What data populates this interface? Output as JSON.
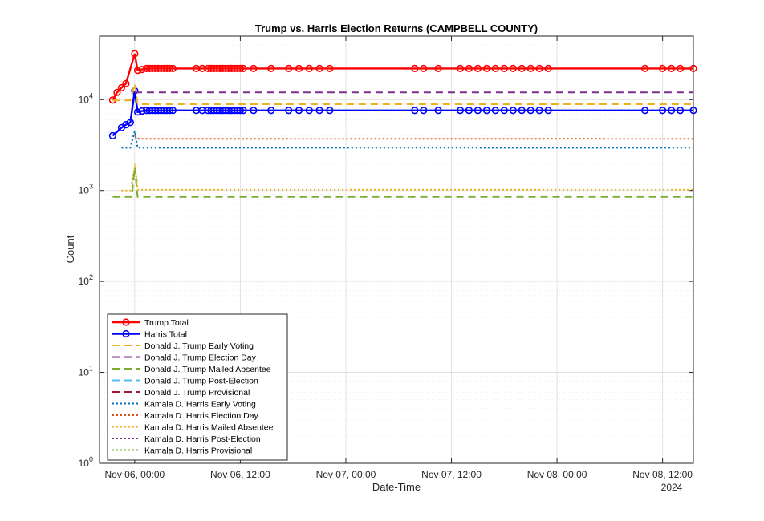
{
  "chart_data": {
    "type": "line",
    "title": "Trump vs. Harris Election Returns (CAMPBELL COUNTY)",
    "xlabel": "Date-Time",
    "ylabel": "Count",
    "y_scale": "log",
    "ylim": [
      1,
      50000
    ],
    "xlim": [
      "2024-11-05 20:00",
      "2024-11-08 15:30"
    ],
    "x_year_label": "2024",
    "grid": true,
    "legend_position": "bottom-left",
    "x_ticks": [
      {
        "x": "2024-11-06 00:00",
        "label": "Nov 06, 00:00"
      },
      {
        "x": "2024-11-06 12:00",
        "label": "Nov 06, 12:00"
      },
      {
        "x": "2024-11-07 00:00",
        "label": "Nov 07, 00:00"
      },
      {
        "x": "2024-11-07 12:00",
        "label": "Nov 07, 12:00"
      },
      {
        "x": "2024-11-08 00:00",
        "label": "Nov 08, 00:00"
      },
      {
        "x": "2024-11-08 12:00",
        "label": "Nov 08, 12:00"
      }
    ],
    "y_ticks": [
      {
        "value": 1,
        "base": "10",
        "exp": "0"
      },
      {
        "value": 10,
        "base": "10",
        "exp": "1"
      },
      {
        "value": 100,
        "base": "10",
        "exp": "2"
      },
      {
        "value": 1000,
        "base": "10",
        "exp": "3"
      },
      {
        "value": 10000,
        "base": "10",
        "exp": "4"
      }
    ],
    "series": [
      {
        "name": "Trump Total",
        "color": "#ff0000",
        "style": "solid",
        "marker": "circle",
        "points": [
          [
            "2024-11-05 21:30",
            9900
          ],
          [
            "2024-11-05 22:00",
            12000
          ],
          [
            "2024-11-05 22:30",
            13500
          ],
          [
            "2024-11-05 23:00",
            15000
          ],
          [
            "2024-11-06 00:00",
            32000
          ],
          [
            "2024-11-06 00:20",
            21000
          ],
          [
            "2024-11-06 00:50",
            21500
          ],
          [
            "2024-11-06 01:20",
            22000
          ],
          [
            "2024-11-06 01:40",
            22000
          ],
          [
            "2024-11-06 02:00",
            22000
          ],
          [
            "2024-11-06 02:20",
            22000
          ],
          [
            "2024-11-06 02:40",
            22000
          ],
          [
            "2024-11-06 03:00",
            22000
          ],
          [
            "2024-11-06 03:20",
            22000
          ],
          [
            "2024-11-06 03:40",
            22000
          ],
          [
            "2024-11-06 04:00",
            22000
          ],
          [
            "2024-11-06 04:20",
            22000
          ],
          [
            "2024-11-06 07:00",
            22000
          ],
          [
            "2024-11-06 07:40",
            22000
          ],
          [
            "2024-11-06 08:20",
            22000
          ],
          [
            "2024-11-06 08:40",
            22000
          ],
          [
            "2024-11-06 09:00",
            22000
          ],
          [
            "2024-11-06 09:20",
            22000
          ],
          [
            "2024-11-06 09:40",
            22000
          ],
          [
            "2024-11-06 10:00",
            22000
          ],
          [
            "2024-11-06 10:20",
            22000
          ],
          [
            "2024-11-06 10:40",
            22000
          ],
          [
            "2024-11-06 11:00",
            22000
          ],
          [
            "2024-11-06 11:20",
            22000
          ],
          [
            "2024-11-06 11:40",
            22000
          ],
          [
            "2024-11-06 12:00",
            22000
          ],
          [
            "2024-11-06 12:20",
            22000
          ],
          [
            "2024-11-06 13:30",
            22000
          ],
          [
            "2024-11-06 15:30",
            22000
          ],
          [
            "2024-11-06 17:30",
            22000
          ],
          [
            "2024-11-06 18:40",
            22000
          ],
          [
            "2024-11-06 19:50",
            22000
          ],
          [
            "2024-11-06 21:00",
            22000
          ],
          [
            "2024-11-06 22:10",
            22000
          ],
          [
            "2024-11-07 07:50",
            22000
          ],
          [
            "2024-11-07 08:50",
            22000
          ],
          [
            "2024-11-07 10:30",
            22000
          ],
          [
            "2024-11-07 13:00",
            22000
          ],
          [
            "2024-11-07 14:00",
            22000
          ],
          [
            "2024-11-07 15:00",
            22000
          ],
          [
            "2024-11-07 16:00",
            22000
          ],
          [
            "2024-11-07 17:00",
            22000
          ],
          [
            "2024-11-07 18:00",
            22000
          ],
          [
            "2024-11-07 19:00",
            22000
          ],
          [
            "2024-11-07 20:00",
            22000
          ],
          [
            "2024-11-07 21:00",
            22000
          ],
          [
            "2024-11-07 22:00",
            22000
          ],
          [
            "2024-11-07 23:00",
            22000
          ],
          [
            "2024-11-08 10:00",
            22000
          ],
          [
            "2024-11-08 12:00",
            22000
          ],
          [
            "2024-11-08 13:00",
            22000
          ],
          [
            "2024-11-08 14:00",
            22000
          ],
          [
            "2024-11-08 15:30",
            22000
          ]
        ]
      },
      {
        "name": "Harris Total",
        "color": "#0000ff",
        "style": "solid",
        "marker": "circle",
        "points": [
          [
            "2024-11-05 21:30",
            4000
          ],
          [
            "2024-11-05 22:30",
            4900
          ],
          [
            "2024-11-05 23:00",
            5300
          ],
          [
            "2024-11-05 23:30",
            5600
          ],
          [
            "2024-11-06 00:00",
            12500
          ],
          [
            "2024-11-06 00:20",
            7300
          ],
          [
            "2024-11-06 00:50",
            7500
          ],
          [
            "2024-11-06 01:20",
            7600
          ],
          [
            "2024-11-06 01:40",
            7600
          ],
          [
            "2024-11-06 02:00",
            7600
          ],
          [
            "2024-11-06 02:20",
            7600
          ],
          [
            "2024-11-06 02:40",
            7600
          ],
          [
            "2024-11-06 03:00",
            7600
          ],
          [
            "2024-11-06 03:20",
            7600
          ],
          [
            "2024-11-06 03:40",
            7600
          ],
          [
            "2024-11-06 04:00",
            7600
          ],
          [
            "2024-11-06 04:20",
            7600
          ],
          [
            "2024-11-06 07:00",
            7600
          ],
          [
            "2024-11-06 07:40",
            7600
          ],
          [
            "2024-11-06 08:20",
            7600
          ],
          [
            "2024-11-06 08:40",
            7600
          ],
          [
            "2024-11-06 09:00",
            7600
          ],
          [
            "2024-11-06 09:20",
            7600
          ],
          [
            "2024-11-06 09:40",
            7600
          ],
          [
            "2024-11-06 10:00",
            7600
          ],
          [
            "2024-11-06 10:20",
            7600
          ],
          [
            "2024-11-06 10:40",
            7600
          ],
          [
            "2024-11-06 11:00",
            7600
          ],
          [
            "2024-11-06 11:20",
            7600
          ],
          [
            "2024-11-06 11:40",
            7600
          ],
          [
            "2024-11-06 12:00",
            7600
          ],
          [
            "2024-11-06 12:20",
            7600
          ],
          [
            "2024-11-06 13:30",
            7600
          ],
          [
            "2024-11-06 15:30",
            7600
          ],
          [
            "2024-11-06 17:30",
            7600
          ],
          [
            "2024-11-06 18:40",
            7600
          ],
          [
            "2024-11-06 19:50",
            7600
          ],
          [
            "2024-11-06 21:00",
            7600
          ],
          [
            "2024-11-06 22:10",
            7600
          ],
          [
            "2024-11-07 07:50",
            7600
          ],
          [
            "2024-11-07 08:50",
            7600
          ],
          [
            "2024-11-07 10:30",
            7600
          ],
          [
            "2024-11-07 13:00",
            7600
          ],
          [
            "2024-11-07 14:00",
            7600
          ],
          [
            "2024-11-07 15:00",
            7600
          ],
          [
            "2024-11-07 16:00",
            7600
          ],
          [
            "2024-11-07 17:00",
            7600
          ],
          [
            "2024-11-07 18:00",
            7600
          ],
          [
            "2024-11-07 19:00",
            7600
          ],
          [
            "2024-11-07 20:00",
            7600
          ],
          [
            "2024-11-07 21:00",
            7600
          ],
          [
            "2024-11-07 22:00",
            7600
          ],
          [
            "2024-11-07 23:00",
            7600
          ],
          [
            "2024-11-08 10:00",
            7600
          ],
          [
            "2024-11-08 12:00",
            7600
          ],
          [
            "2024-11-08 13:00",
            7600
          ],
          [
            "2024-11-08 14:00",
            7600
          ],
          [
            "2024-11-08 15:30",
            7600
          ]
        ]
      },
      {
        "name": "Donald J. Trump Early Voting",
        "color": "#edb120",
        "style": "dashed",
        "marker": "none",
        "points": [
          [
            "2024-11-05 21:30",
            9800
          ],
          [
            "2024-11-05 23:30",
            9800
          ],
          [
            "2024-11-06 00:00",
            15000
          ],
          [
            "2024-11-06 00:20",
            8900
          ],
          [
            "2024-11-08 15:30",
            8900
          ]
        ]
      },
      {
        "name": "Donald J. Trump Election Day",
        "color": "#7e2f8e",
        "style": "dashed",
        "marker": "none",
        "points": [
          [
            "2024-11-06 00:00",
            12000
          ],
          [
            "2024-11-06 00:20",
            12000
          ],
          [
            "2024-11-08 15:30",
            12000
          ]
        ]
      },
      {
        "name": "Donald J. Trump Mailed Absentee",
        "color": "#77ac30",
        "style": "dashed",
        "marker": "none",
        "points": [
          [
            "2024-11-05 21:30",
            850
          ],
          [
            "2024-11-05 23:40",
            850
          ],
          [
            "2024-11-06 00:00",
            1800
          ],
          [
            "2024-11-06 00:20",
            850
          ],
          [
            "2024-11-08 15:30",
            850
          ]
        ]
      },
      {
        "name": "Donald J. Trump Post-Election",
        "color": "#4dbeee",
        "style": "dashed",
        "marker": "none",
        "points": []
      },
      {
        "name": "Donald J. Trump Provisional",
        "color": "#a2142f",
        "style": "dashed",
        "marker": "none",
        "points": []
      },
      {
        "name": "Kamala D. Harris Early Voting",
        "color": "#0072bd",
        "style": "dotted",
        "marker": "none",
        "points": [
          [
            "2024-11-05 22:30",
            2950
          ],
          [
            "2024-11-05 23:30",
            2950
          ],
          [
            "2024-11-06 00:00",
            4500
          ],
          [
            "2024-11-06 00:20",
            2950
          ],
          [
            "2024-11-08 15:30",
            2950
          ]
        ]
      },
      {
        "name": "Kamala D. Harris Election Day",
        "color": "#d95319",
        "style": "dotted",
        "marker": "none",
        "points": [
          [
            "2024-11-06 00:00",
            4000
          ],
          [
            "2024-11-06 00:30",
            3700
          ],
          [
            "2024-11-08 15:30",
            3700
          ]
        ]
      },
      {
        "name": "Kamala D. Harris Mailed Absentee",
        "color": "#edb120",
        "style": "dotted",
        "marker": "none",
        "points": [
          [
            "2024-11-05 22:30",
            1000
          ],
          [
            "2024-11-05 23:40",
            1000
          ],
          [
            "2024-11-06 00:00",
            2000
          ],
          [
            "2024-11-06 00:20",
            1020
          ],
          [
            "2024-11-08 15:30",
            1020
          ]
        ]
      },
      {
        "name": "Kamala D. Harris Post-Election",
        "color": "#7e2f8e",
        "style": "dotted",
        "marker": "none",
        "points": []
      },
      {
        "name": "Kamala D. Harris Provisional",
        "color": "#77ac30",
        "style": "dotted",
        "marker": "none",
        "points": [
          [
            "2024-11-05 23:40",
            1200
          ],
          [
            "2024-11-06 00:00",
            1700
          ],
          [
            "2024-11-06 00:20",
            1200
          ]
        ]
      }
    ]
  }
}
